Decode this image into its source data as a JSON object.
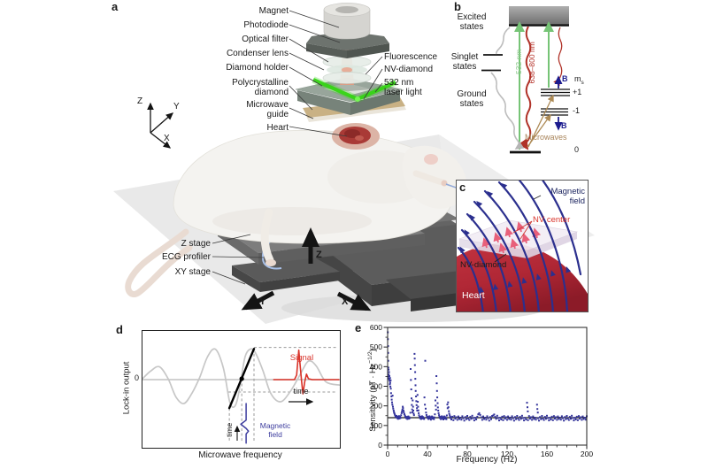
{
  "panel_a": {
    "letter": "a",
    "labels": {
      "magnet": "Magnet",
      "photodiode": "Photodiode",
      "optical_filter": "Optical filter",
      "condenser_lens": "Condenser lens",
      "diamond_holder": "Diamond holder",
      "polycrystalline_diamond": "Polycrystalline\ndiamond",
      "microwave_guide": "Microwave\nguide",
      "heart": "Heart",
      "fluorescence": "Fluorescence",
      "nv_diamond": "NV-diamond",
      "laser": "532 nm\nlaser light",
      "z_stage": "Z stage",
      "ecg_profiler": "ECG profiler",
      "xy_stage": "XY stage"
    },
    "axes_small": {
      "x": "X",
      "y": "Y",
      "z": "Z"
    },
    "axes_large": {
      "x": "X",
      "y": "Y",
      "z": "Z"
    }
  },
  "panel_b": {
    "letter": "b",
    "excited": "Excited\nstates",
    "singlet": "Singlet\nstates",
    "ground": "Ground\nstates",
    "green_wavelength": "532 nm",
    "red_wavelength": "638–800 nm",
    "microwaves": "Microwaves",
    "b_up": "B",
    "b_down": "B",
    "ms": "m",
    "ms_sub": "s",
    "level_plus": "+1",
    "level_minus": "-1",
    "level_zero": "0"
  },
  "panel_c": {
    "letter": "c",
    "magnetic_field": "Magnetic\nfield",
    "nv_center": "NV center",
    "nv_diamond": "NV-diamond",
    "heart": "Heart"
  },
  "panel_d": {
    "letter": "d",
    "ylabel": "Lock-in output",
    "xlabel": "Microwave frequency",
    "zero_tick": "0",
    "signal": "Signal",
    "time_horizontal": "time",
    "time_vertical": "time",
    "magnetic_field": "Magnetic\nfield"
  },
  "panel_e": {
    "letter": "e",
    "xlabel": "Frequency (Hz)",
    "ylabel_prefix": "Sensitivity (pT · Hz",
    "ylabel_sup": "−1/2",
    "ylabel_suffix": ")"
  },
  "colors": {
    "laser_green": "#35d414",
    "energy_green": "#76c476",
    "energy_red": "#b03228",
    "microwave_tan": "#ad8a55",
    "field_blue": "#2b2f8e",
    "nv_red": "#d9342c",
    "scatter_blue": "#33339b",
    "signal_red": "#d93228",
    "pulse_blue": "#3d3d9e",
    "heart_red": "#b02735"
  },
  "chart_data": [
    {
      "type": "line",
      "panel": "d",
      "xlabel": "Microwave frequency",
      "ylabel": "Lock-in output",
      "x_axis": "normalized 0–1 (schematic, no numeric scale shown)",
      "y_axis": "normalized, zero line labeled 0",
      "series": [
        {
          "name": "lock-in sweep",
          "color": "#c7c7c7",
          "width": 1.7,
          "smooth": true,
          "points": [
            [
              0,
              0.02
            ],
            [
              0.04,
              0.18
            ],
            [
              0.085,
              0.28
            ],
            [
              0.13,
              0.02
            ],
            [
              0.17,
              -0.38
            ],
            [
              0.21,
              -0.52
            ],
            [
              0.25,
              -0.3
            ],
            [
              0.29,
              0.05
            ],
            [
              0.33,
              0.5
            ],
            [
              0.37,
              0.66
            ],
            [
              0.41,
              0.25
            ],
            [
              0.44,
              -0.45
            ],
            [
              0.46,
              -0.6
            ],
            [
              0.48,
              -0.45
            ],
            [
              0.5,
              0.02
            ],
            [
              0.52,
              0.5
            ],
            [
              0.545,
              0.66
            ],
            [
              0.57,
              0.6
            ],
            [
              0.61,
              0.2
            ],
            [
              0.65,
              -0.3
            ],
            [
              0.7,
              -0.48
            ],
            [
              0.75,
              -0.25
            ],
            [
              0.8,
              0.12
            ],
            [
              0.84,
              0.4
            ],
            [
              0.88,
              0.3
            ],
            [
              0.93,
              -0.05
            ],
            [
              1,
              -0.12
            ]
          ]
        },
        {
          "name": "linear slope",
          "color": "#000000",
          "width": 2.4,
          "smooth": false,
          "points": [
            [
              0.44,
              -0.62
            ],
            [
              0.565,
              0.67
            ]
          ]
        },
        {
          "name": "signal pulse",
          "color": "#d93228",
          "width": 1.6,
          "smooth": false,
          "points": [
            [
              0.665,
              0
            ],
            [
              0.77,
              0
            ],
            [
              0.781,
              0.1
            ],
            [
              0.792,
              0.64
            ],
            [
              0.806,
              -0.02
            ],
            [
              0.813,
              -0.31
            ],
            [
              0.822,
              -0.05
            ],
            [
              0.831,
              0.12
            ],
            [
              0.841,
              0.02
            ],
            [
              0.86,
              0
            ],
            [
              0.995,
              0
            ]
          ]
        },
        {
          "name": "magnetic field pulse",
          "color": "#3d3d9e",
          "width": 1.5,
          "smooth": false,
          "points": [
            [
              0.525,
              -0.52
            ],
            [
              0.525,
              -0.88
            ],
            [
              0.498,
              -0.97
            ],
            [
              0.525,
              -1.06
            ],
            [
              0.537,
              -1.12
            ],
            [
              0.525,
              -1.18
            ],
            [
              0.525,
              -1.38
            ]
          ]
        }
      ],
      "marker": {
        "x": 0.503,
        "y": 0.02
      },
      "guides": {
        "vertical": [
          [
            0.503,
            0.02,
            -1.35
          ],
          [
            0.565,
            0.67,
            -1.35
          ],
          [
            0.44,
            -0.62,
            -1.35
          ]
        ],
        "horizontal": [
          [
            0.7,
            0.565,
            0.985
          ],
          [
            -0.27,
            0.435,
            0.985
          ]
        ]
      }
    },
    {
      "type": "scatter",
      "panel": "e",
      "xlabel": "Frequency (Hz)",
      "ylabel": "Sensitivity (pT · Hz^-1/2)",
      "xlim": [
        0,
        200
      ],
      "ylim": [
        0,
        600
      ],
      "xticks": [
        0,
        40,
        80,
        120,
        160,
        200
      ],
      "yticks": [
        0,
        100,
        200,
        300,
        400,
        500,
        600
      ],
      "minor_x_step": 10,
      "minor_y_step": 50,
      "baseline_line": 140,
      "point_color": "#33339b",
      "points": [
        [
          0.2,
          575
        ],
        [
          0.3,
          540
        ],
        [
          0.4,
          505
        ],
        [
          0.5,
          470
        ],
        [
          0.6,
          430
        ],
        [
          0.7,
          395
        ],
        [
          0.8,
          372
        ],
        [
          0.9,
          350
        ],
        [
          1,
          385
        ],
        [
          1.1,
          360
        ],
        [
          1.2,
          340
        ],
        [
          1.4,
          372
        ],
        [
          1.6,
          335
        ],
        [
          1.8,
          352
        ],
        [
          2,
          328
        ],
        [
          2.2,
          310
        ],
        [
          2.4,
          342
        ],
        [
          2.6,
          318
        ],
        [
          2.8,
          298
        ],
        [
          3,
          330
        ],
        [
          3.2,
          288
        ],
        [
          3.5,
          265
        ],
        [
          3.8,
          248
        ],
        [
          4.1,
          232
        ],
        [
          4.4,
          218
        ],
        [
          4.7,
          206
        ],
        [
          5,
          252
        ],
        [
          5.3,
          196
        ],
        [
          5.6,
          186
        ],
        [
          6,
          176
        ],
        [
          6.4,
          168
        ],
        [
          6.8,
          162
        ],
        [
          7.2,
          156
        ],
        [
          7.6,
          151
        ],
        [
          8,
          147
        ],
        [
          8.5,
          143
        ],
        [
          9,
          149
        ],
        [
          9.5,
          138
        ],
        [
          10,
          145
        ],
        [
          10.5,
          134
        ],
        [
          11,
          142
        ],
        [
          11.5,
          148
        ],
        [
          12,
          136
        ],
        [
          12.5,
          144
        ],
        [
          13,
          139
        ],
        [
          13.5,
          152
        ],
        [
          14,
          163
        ],
        [
          14.4,
          172
        ],
        [
          14.8,
          181
        ],
        [
          15.2,
          196
        ],
        [
          15.5,
          188
        ],
        [
          15.9,
          176
        ],
        [
          16.3,
          167
        ],
        [
          16.8,
          158
        ],
        [
          17.3,
          151
        ],
        [
          17.8,
          146
        ],
        [
          18.3,
          141
        ],
        [
          18.8,
          137
        ],
        [
          19.3,
          144
        ],
        [
          19.8,
          133
        ],
        [
          20.3,
          140
        ],
        [
          20.8,
          146
        ],
        [
          21.3,
          135
        ],
        [
          21.8,
          142
        ],
        [
          22.3,
          138
        ],
        [
          22.8,
          165
        ],
        [
          23.1,
          388
        ],
        [
          23.4,
          332
        ],
        [
          23.7,
          284
        ],
        [
          24,
          238
        ],
        [
          24.3,
          205
        ],
        [
          24.6,
          182
        ],
        [
          24.9,
          168
        ],
        [
          25.2,
          228
        ],
        [
          25.5,
          196
        ],
        [
          25.8,
          176
        ],
        [
          26.1,
          161
        ],
        [
          26.5,
          153
        ],
        [
          27,
          465
        ],
        [
          27.2,
          441
        ],
        [
          27.4,
          408
        ],
        [
          27.6,
          372
        ],
        [
          27.8,
          338
        ],
        [
          28,
          305
        ],
        [
          28.2,
          276
        ],
        [
          28.5,
          248
        ],
        [
          28.8,
          224
        ],
        [
          29.1,
          204
        ],
        [
          29.4,
          188
        ],
        [
          29.7,
          176
        ],
        [
          30,
          256
        ],
        [
          30.3,
          221
        ],
        [
          30.6,
          196
        ],
        [
          30.9,
          177
        ],
        [
          31.2,
          163
        ],
        [
          31.6,
          152
        ],
        [
          32.1,
          144
        ],
        [
          32.6,
          137
        ],
        [
          33.1,
          145
        ],
        [
          33.6,
          133
        ],
        [
          34.1,
          141
        ],
        [
          34.6,
          147
        ],
        [
          35.1,
          136
        ],
        [
          35.6,
          143
        ],
        [
          36.1,
          138
        ],
        [
          36.6,
          133
        ],
        [
          37,
          243
        ],
        [
          37.4,
          206
        ],
        [
          37.8,
          430
        ],
        [
          38.2,
          186
        ],
        [
          38.6,
          166
        ],
        [
          39,
          154
        ],
        [
          39.5,
          146
        ],
        [
          40,
          139
        ],
        [
          40.5,
          144
        ],
        [
          41,
          133
        ],
        [
          41.5,
          141
        ],
        [
          42,
          147
        ],
        [
          42.5,
          136
        ],
        [
          43,
          143
        ],
        [
          43.5,
          130
        ],
        [
          44,
          140
        ],
        [
          44.5,
          146
        ],
        [
          45,
          135
        ],
        [
          45.5,
          142
        ],
        [
          46,
          137
        ],
        [
          46.5,
          132
        ],
        [
          47,
          141
        ],
        [
          47.5,
          157
        ],
        [
          48,
          228
        ],
        [
          48.3,
          201
        ],
        [
          48.6,
          181
        ],
        [
          49,
          352
        ],
        [
          49.3,
          315
        ],
        [
          49.6,
          276
        ],
        [
          49.9,
          243
        ],
        [
          50.2,
          214
        ],
        [
          50.5,
          192
        ],
        [
          50.8,
          176
        ],
        [
          51.2,
          163
        ],
        [
          51.6,
          153
        ],
        [
          52,
          145
        ],
        [
          52.5,
          138
        ],
        [
          53,
          144
        ],
        [
          53.5,
          132
        ],
        [
          54,
          141
        ],
        [
          54.5,
          147
        ],
        [
          55,
          136
        ],
        [
          55.5,
          143
        ],
        [
          56,
          131
        ],
        [
          56.5,
          140
        ],
        [
          57,
          146
        ],
        [
          57.5,
          135
        ],
        [
          58,
          142
        ],
        [
          58.5,
          137
        ],
        [
          59,
          132
        ],
        [
          59.5,
          151
        ],
        [
          60,
          207
        ],
        [
          60.3,
          188
        ],
        [
          60.7,
          218
        ],
        [
          61.1,
          193
        ],
        [
          61.5,
          173
        ],
        [
          61.9,
          160
        ],
        [
          62.4,
          151
        ],
        [
          62.9,
          145
        ],
        [
          140.4,
          193
        ],
        [
          140.8,
          172
        ],
        [
          150.4,
          184
        ],
        [
          150.8,
          166
        ]
      ],
      "baseline_start": 63,
      "baseline_step": 1,
      "baseline_values": [
        139,
        131,
        145,
        127,
        148,
        135,
        142,
        129,
        146,
        133,
        140,
        130,
        147,
        137,
        125,
        143,
        132,
        149,
        136,
        128,
        144,
        134,
        150,
        138,
        126,
        139,
        131,
        145,
        157,
        163,
        154,
        142,
        129,
        146,
        133,
        140,
        130,
        147,
        137,
        125,
        143,
        132,
        149,
        151,
        156,
        144,
        134,
        150,
        138,
        126,
        139,
        131,
        145,
        127,
        148,
        135,
        142,
        129,
        146,
        133,
        140,
        130,
        147,
        137,
        125,
        143,
        132,
        149,
        136,
        128,
        144,
        134,
        150,
        138,
        126,
        139,
        131,
        216,
        127,
        148,
        135,
        142,
        129,
        146,
        133,
        140,
        130,
        206,
        137,
        125,
        143,
        132,
        149,
        136,
        128,
        144,
        134,
        150,
        138,
        126,
        139,
        131,
        145,
        127,
        148,
        135,
        142,
        129,
        146,
        133,
        140,
        130,
        147,
        137,
        125,
        143,
        132,
        149,
        136,
        128,
        144,
        134,
        150,
        138,
        126,
        139,
        131,
        145,
        127,
        148,
        135,
        142,
        129,
        146,
        133,
        140,
        130,
        147
      ]
    }
  ]
}
